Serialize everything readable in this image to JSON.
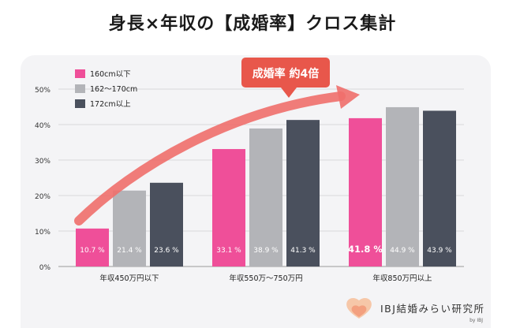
{
  "title": "身長×年収の【成婚率】クロス集計",
  "callout": "成婚率 約4倍",
  "brand": {
    "name": "IBJ結婚みらい研究所",
    "sub": "by IBJ"
  },
  "colors": {
    "series": [
      "#ef4f99",
      "#b3b4b8",
      "#4a505d"
    ],
    "arrow": "#ef6f6c",
    "callout_bg": "#e8574b"
  },
  "chart_data": {
    "type": "bar",
    "categories": [
      "年収450万円以下",
      "年収550万〜750万円",
      "年収850万円以上"
    ],
    "series": [
      {
        "name": "160cm以下",
        "values": [
          10.7,
          33.1,
          41.8
        ],
        "labels": [
          "10.7 %",
          "33.1 %",
          "41.8 %"
        ]
      },
      {
        "name": "162〜170cm",
        "values": [
          21.4,
          38.9,
          44.9
        ],
        "labels": [
          "21.4 %",
          "38.9 %",
          "44.9 %"
        ]
      },
      {
        "name": "172cm以上",
        "values": [
          23.6,
          41.3,
          43.9
        ],
        "labels": [
          "23.6 %",
          "41.3 %",
          "43.9 %"
        ]
      }
    ],
    "yticks": [
      "0%",
      "10%",
      "20%",
      "30%",
      "40%",
      "50%"
    ],
    "ylim": [
      0,
      50
    ],
    "grid": true,
    "legend": "top-left"
  }
}
